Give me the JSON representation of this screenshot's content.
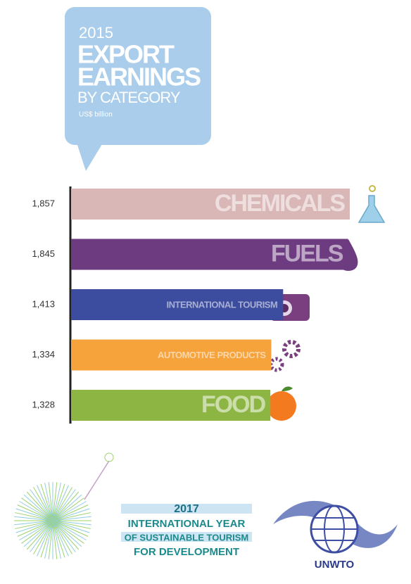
{
  "chart_data": {
    "type": "bar",
    "orientation": "horizontal",
    "title_lines": [
      "2015",
      "EXPORT",
      "EARNINGS",
      "BY CATEGORY"
    ],
    "subtitle": "US$ billion",
    "categories": [
      "CHEMICALS",
      "FUELS",
      "INTERNATIONAL TOURISM",
      "AUTOMOTIVE PRODUCTS",
      "FOOD"
    ],
    "values": [
      1857,
      1845,
      1413,
      1334,
      1328
    ],
    "value_labels": [
      "1,857",
      "1,845",
      "1,413",
      "1,334",
      "1,328"
    ],
    "colors": [
      "#d9b7b7",
      "#6d3b7f",
      "#3c4d9f",
      "#f6a33c",
      "#8cb544"
    ]
  },
  "footer": {
    "year": "2017",
    "lines": [
      "INTERNATIONAL YEAR",
      "OF SUSTAINABLE TOURISM",
      "FOR DEVELOPMENT"
    ],
    "logo": "UNWTO"
  }
}
